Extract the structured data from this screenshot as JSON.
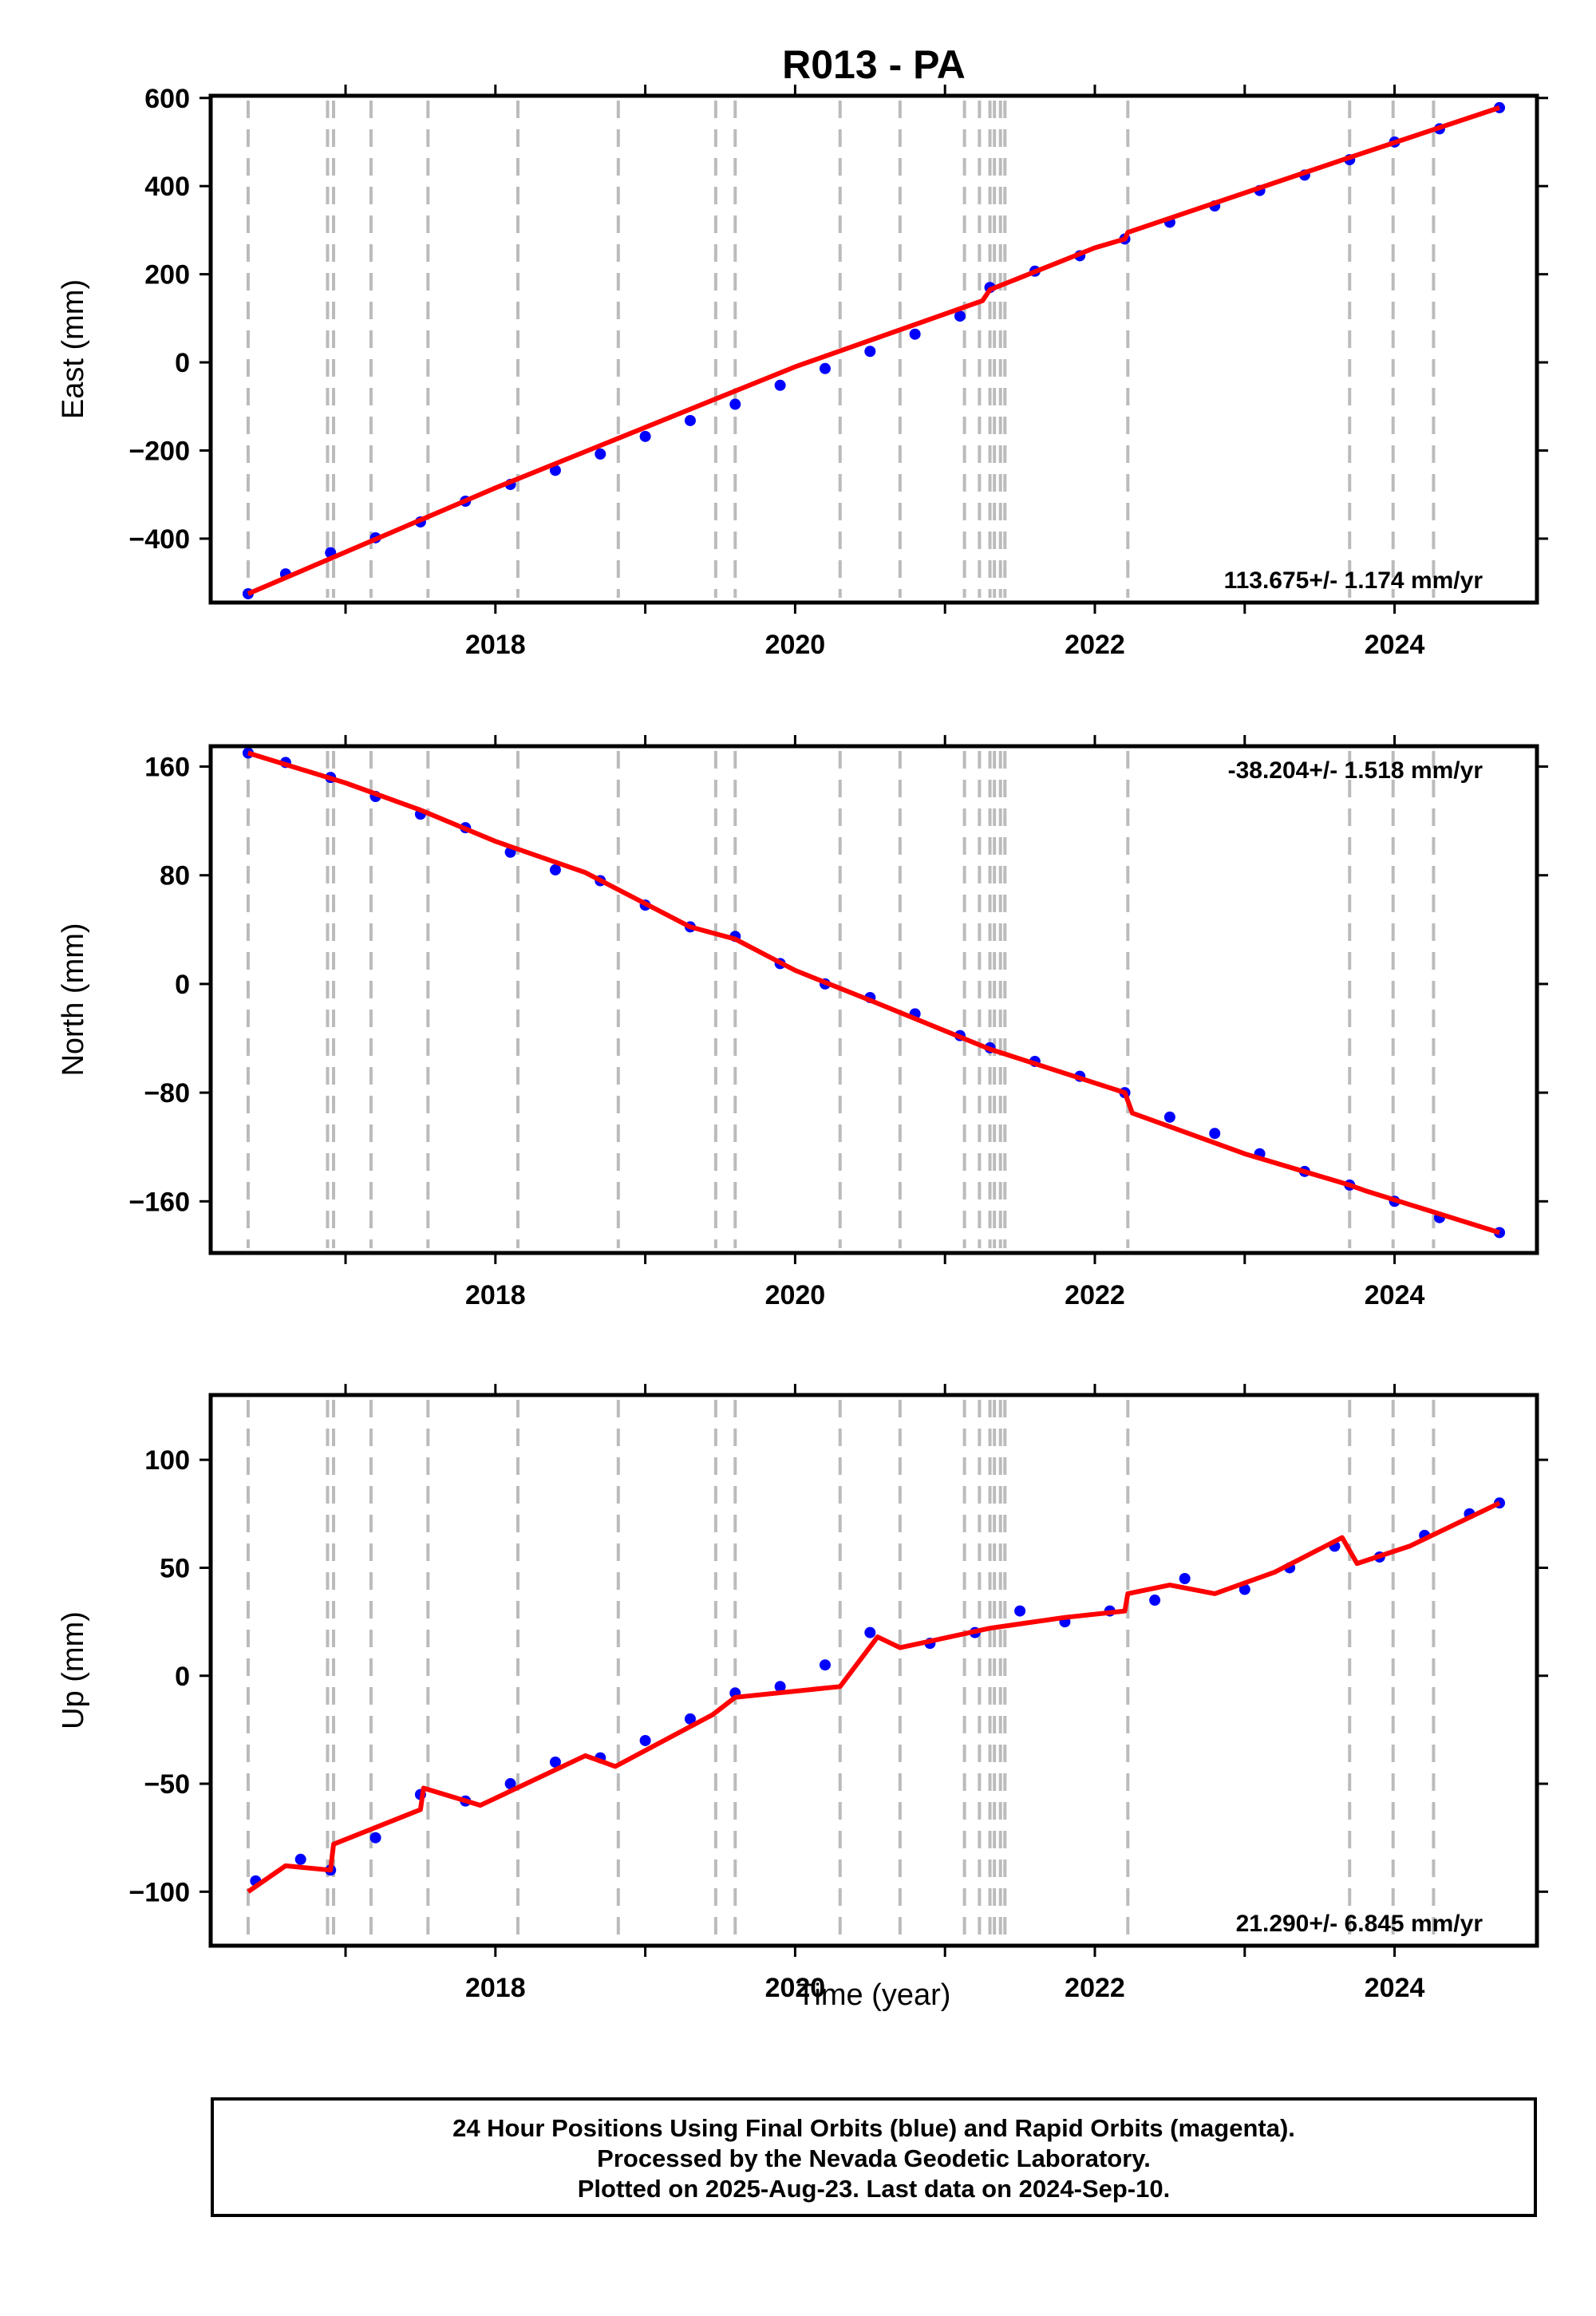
{
  "title": "R013 - PA",
  "xlabel": "Time (year)",
  "footer": {
    "line1": "24 Hour Positions Using Final Orbits (blue) and Rapid Orbits (magenta).",
    "line2": "Processed by the Nevada Geodetic Laboratory.",
    "line3": "Plotted on 2025-Aug-23. Last data on 2024-Sep-10."
  },
  "colors": {
    "data_points": "#0000ff",
    "model_fit": "#ff0000",
    "event_lines": "#bbbbbb",
    "frame": "#000000"
  },
  "chart_data": [
    {
      "type": "scatter",
      "component": "east",
      "ylabel": "East (mm)",
      "xlim": [
        2016.1,
        2024.95
      ],
      "ylim": [
        -545,
        605
      ],
      "yticks": [
        -400,
        -200,
        0,
        200,
        400,
        600
      ],
      "xticks": [
        2018,
        2020,
        2022,
        2024
      ],
      "rate_label": "113.675+/- 1.174 mm/yr",
      "rate_position": "bottom-right",
      "series": [
        {
          "kind": "points",
          "x": [
            2016.35,
            2016.6,
            2016.9,
            2017.2,
            2017.5,
            2017.8,
            2018.1,
            2018.4,
            2018.7,
            2019.0,
            2019.3,
            2019.6,
            2019.9,
            2020.2,
            2020.5,
            2020.8,
            2021.1,
            2021.3,
            2021.6,
            2021.9,
            2022.2,
            2022.5,
            2022.8,
            2023.1,
            2023.4,
            2023.7,
            2024.0,
            2024.3,
            2024.7
          ],
          "y": [
            -525,
            -480,
            -432,
            -398,
            -362,
            -315,
            -277,
            -245,
            -208,
            -168,
            -132,
            -95,
            -52,
            -14,
            25,
            64,
            105,
            170,
            207,
            242,
            280,
            318,
            355,
            390,
            425,
            460,
            500,
            530,
            578
          ]
        },
        {
          "kind": "model",
          "x": [
            2016.35,
            2018.0,
            2020.0,
            2021.25,
            2021.3,
            2022.0,
            2022.2,
            2022.22,
            2023.7,
            2024.7
          ],
          "y": [
            -525,
            -285,
            -10,
            140,
            165,
            260,
            280,
            295,
            465,
            578
          ]
        }
      ]
    },
    {
      "type": "scatter",
      "component": "north",
      "ylabel": "North (mm)",
      "xlim": [
        2016.1,
        2024.95
      ],
      "ylim": [
        -198,
        175
      ],
      "yticks": [
        -160,
        -80,
        0,
        80,
        160
      ],
      "xticks": [
        2018,
        2020,
        2022,
        2024
      ],
      "rate_label": "-38.204+/- 1.518 mm/yr",
      "rate_position": "top-right",
      "series": [
        {
          "kind": "points",
          "x": [
            2016.35,
            2016.6,
            2016.9,
            2017.2,
            2017.5,
            2017.8,
            2018.1,
            2018.4,
            2018.7,
            2019.0,
            2019.3,
            2019.6,
            2019.9,
            2020.2,
            2020.5,
            2020.8,
            2021.1,
            2021.3,
            2021.6,
            2021.9,
            2022.2,
            2022.5,
            2022.8,
            2023.1,
            2023.4,
            2023.7,
            2024.0,
            2024.3,
            2024.7
          ],
          "y": [
            170,
            163,
            152,
            138,
            125,
            115,
            97,
            84,
            76,
            58,
            42,
            35,
            15,
            0,
            -10,
            -22,
            -38,
            -47,
            -57,
            -68,
            -80,
            -98,
            -110,
            -125,
            -138,
            -148,
            -160,
            -172,
            -183
          ]
        },
        {
          "kind": "model",
          "x": [
            2016.35,
            2017.0,
            2017.5,
            2018.0,
            2018.6,
            2019.3,
            2019.6,
            2020.0,
            2020.5,
            2021.3,
            2022.2,
            2022.25,
            2023.0,
            2023.7,
            2023.8,
            2024.7
          ],
          "y": [
            170,
            148,
            128,
            105,
            82,
            42,
            33,
            10,
            -12,
            -48,
            -80,
            -95,
            -125,
            -148,
            -152,
            -183
          ]
        }
      ]
    },
    {
      "type": "scatter",
      "component": "up",
      "ylabel": "Up (mm)",
      "xlim": [
        2016.1,
        2024.95
      ],
      "ylim": [
        -125,
        130
      ],
      "yticks": [
        -100,
        -50,
        0,
        50,
        100
      ],
      "xticks": [
        2018,
        2020,
        2022,
        2024
      ],
      "rate_label": "21.290+/- 6.845 mm/yr",
      "rate_position": "bottom-right",
      "series": [
        {
          "kind": "points",
          "x": [
            2016.4,
            2016.7,
            2016.9,
            2017.2,
            2017.5,
            2017.8,
            2018.1,
            2018.4,
            2018.7,
            2019.0,
            2019.3,
            2019.6,
            2019.9,
            2020.2,
            2020.5,
            2020.9,
            2021.2,
            2021.5,
            2021.8,
            2022.1,
            2022.4,
            2022.6,
            2023.0,
            2023.3,
            2023.6,
            2023.9,
            2024.2,
            2024.5,
            2024.7
          ],
          "y": [
            -95,
            -85,
            -90,
            -75,
            -55,
            -58,
            -50,
            -40,
            -38,
            -30,
            -20,
            -8,
            -5,
            5,
            20,
            15,
            20,
            30,
            25,
            30,
            35,
            45,
            40,
            50,
            60,
            55,
            65,
            75,
            80
          ]
        },
        {
          "kind": "model",
          "x": [
            2016.35,
            2016.6,
            2016.9,
            2016.92,
            2017.5,
            2017.52,
            2017.9,
            2018.6,
            2018.8,
            2019.45,
            2019.6,
            2020.3,
            2020.55,
            2020.7,
            2021.3,
            2021.8,
            2022.2,
            2022.22,
            2022.5,
            2022.8,
            2023.2,
            2023.65,
            2023.75,
            2024.1,
            2024.7
          ],
          "y": [
            -100,
            -88,
            -90,
            -78,
            -62,
            -52,
            -60,
            -37,
            -42,
            -18,
            -10,
            -5,
            18,
            13,
            22,
            27,
            30,
            38,
            42,
            38,
            48,
            64,
            52,
            60,
            80
          ]
        }
      ]
    }
  ],
  "event_lines_x": [
    2016.35,
    2016.88,
    2016.92,
    2017.17,
    2017.55,
    2018.15,
    2018.82,
    2019.47,
    2019.6,
    2020.3,
    2020.7,
    2021.13,
    2021.23,
    2021.3,
    2021.33,
    2021.37,
    2021.4,
    2022.22,
    2023.7,
    2023.99,
    2024.26
  ]
}
